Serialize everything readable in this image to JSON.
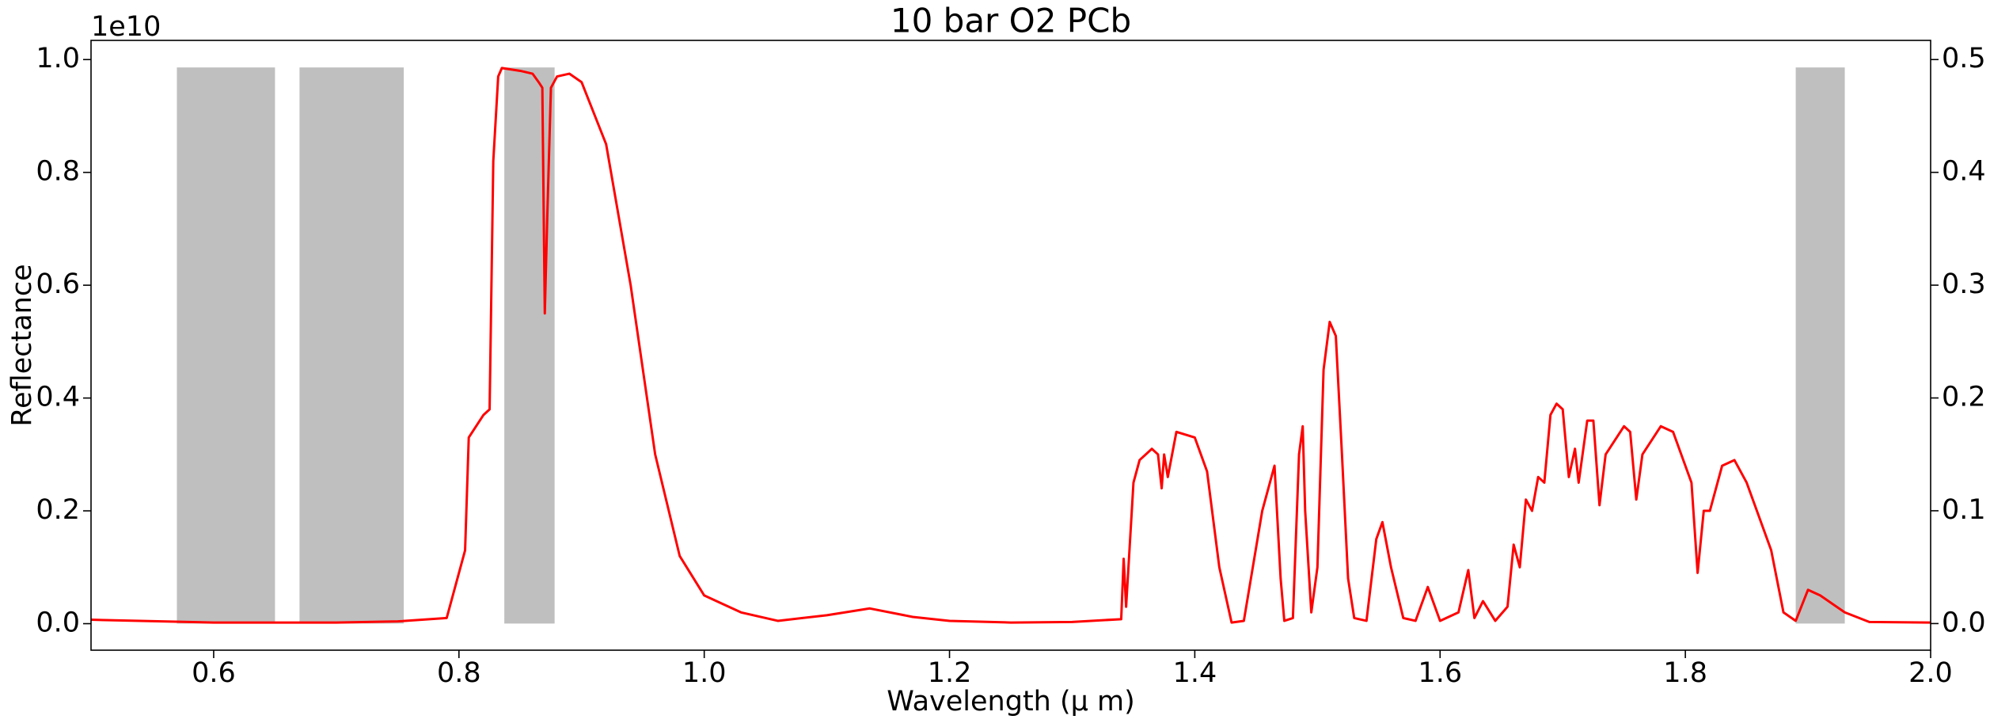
{
  "chart_data": {
    "type": "line",
    "title": "10 bar O2 PCb",
    "x_label": "Wavelength (μ m)",
    "y_label": "Reflectance",
    "y_offset_label": "1e10",
    "xlim": [
      0.5,
      2.0
    ],
    "xticks": [
      0.6,
      0.8,
      {
        "value": 1,
        "label": "1.0"
      },
      1.2,
      1.4,
      1.6,
      1.8,
      {
        "value": 2,
        "label": "2.0"
      }
    ],
    "ylim": [
      -0.047,
      1.034
    ],
    "yticks": [
      {
        "value": 0,
        "label": "0.0"
      },
      0.2,
      0.4,
      0.6,
      0.8,
      {
        "value": 1,
        "label": "1.0"
      }
    ],
    "y2lim": [
      -0.0236,
      0.517
    ],
    "y2ticks": [
      {
        "value": 0,
        "label": "0.0"
      },
      0.1,
      0.2,
      0.3,
      0.4,
      0.5
    ],
    "spans": [
      {
        "x": [
          0.57,
          0.65
        ],
        "y": 0.493
      },
      {
        "x": [
          0.67,
          0.755
        ],
        "y": 0.493
      },
      {
        "x": [
          0.837,
          0.878
        ],
        "y": 0.493
      },
      {
        "x": [
          1.89,
          1.93
        ],
        "y": 0.493
      }
    ],
    "spans_axis": "y2",
    "spans_color": "#bfbfbf",
    "series": [
      {
        "color": "#ff0000",
        "x": [
          0.5,
          0.6,
          0.7,
          0.75,
          0.79,
          0.805,
          0.808,
          0.82,
          0.825,
          0.828,
          0.832,
          0.835,
          0.85,
          0.86,
          0.865,
          0.868,
          0.87,
          0.872,
          0.875,
          0.88,
          0.89,
          0.9,
          0.92,
          0.94,
          0.96,
          0.98,
          1.0,
          1.03,
          1.06,
          1.1,
          1.135,
          1.17,
          1.2,
          1.25,
          1.3,
          1.34,
          1.342,
          1.344,
          1.35,
          1.355,
          1.365,
          1.37,
          1.373,
          1.375,
          1.378,
          1.385,
          1.4,
          1.41,
          1.42,
          1.43,
          1.44,
          1.455,
          1.465,
          1.47,
          1.473,
          1.48,
          1.485,
          1.488,
          1.49,
          1.495,
          1.5,
          1.505,
          1.51,
          1.515,
          1.52,
          1.525,
          1.53,
          1.54,
          1.548,
          1.553,
          1.56,
          1.57,
          1.58,
          1.59,
          1.6,
          1.615,
          1.623,
          1.628,
          1.635,
          1.645,
          1.655,
          1.66,
          1.665,
          1.67,
          1.675,
          1.68,
          1.685,
          1.69,
          1.695,
          1.7,
          1.705,
          1.71,
          1.713,
          1.72,
          1.725,
          1.73,
          1.735,
          1.75,
          1.755,
          1.76,
          1.765,
          1.78,
          1.79,
          1.8,
          1.805,
          1.81,
          1.815,
          1.82,
          1.83,
          1.84,
          1.85,
          1.87,
          1.88,
          1.89,
          1.9,
          1.91,
          1.93,
          1.95,
          2.0
        ],
        "values": [
          0.007,
          0.002,
          0.002,
          0.004,
          0.01,
          0.13,
          0.33,
          0.37,
          0.38,
          0.82,
          0.97,
          0.985,
          0.98,
          0.975,
          0.96,
          0.95,
          0.55,
          0.72,
          0.95,
          0.97,
          0.975,
          0.96,
          0.85,
          0.6,
          0.3,
          0.12,
          0.05,
          0.02,
          0.005,
          0.015,
          0.027,
          0.012,
          0.005,
          0.002,
          0.003,
          0.008,
          0.115,
          0.03,
          0.25,
          0.29,
          0.31,
          0.3,
          0.24,
          0.3,
          0.26,
          0.34,
          0.33,
          0.27,
          0.1,
          0.002,
          0.005,
          0.2,
          0.28,
          0.08,
          0.005,
          0.01,
          0.3,
          0.35,
          0.2,
          0.02,
          0.1,
          0.45,
          0.535,
          0.51,
          0.3,
          0.08,
          0.01,
          0.005,
          0.15,
          0.18,
          0.1,
          0.01,
          0.005,
          0.065,
          0.005,
          0.02,
          0.095,
          0.01,
          0.04,
          0.005,
          0.03,
          0.14,
          0.1,
          0.22,
          0.2,
          0.26,
          0.25,
          0.37,
          0.39,
          0.38,
          0.26,
          0.31,
          0.25,
          0.36,
          0.36,
          0.21,
          0.3,
          0.35,
          0.34,
          0.22,
          0.3,
          0.35,
          0.34,
          0.28,
          0.25,
          0.09,
          0.2,
          0.2,
          0.28,
          0.29,
          0.25,
          0.13,
          0.02,
          0.005,
          0.06,
          0.05,
          0.02,
          0.003,
          0.002
        ]
      }
    ]
  }
}
